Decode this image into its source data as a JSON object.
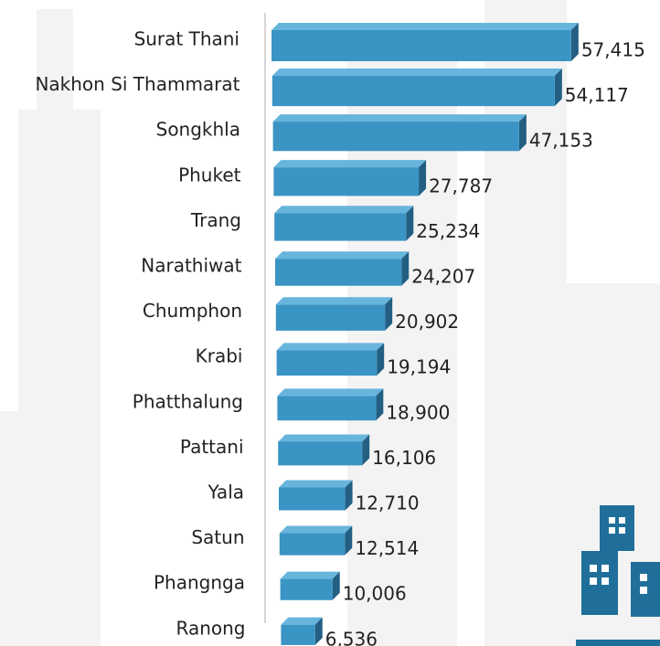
{
  "chart_data": {
    "type": "bar",
    "categories": [
      "Surat Thani",
      "Nakhon Si Thammarat",
      "Songkhla",
      "Phuket",
      "Trang",
      "Narathiwat",
      "Chumphon",
      "Krabi",
      "Phatthalung",
      "Pattani",
      "Yala",
      "Satun",
      "Phangnga",
      "Ranong"
    ],
    "values": [
      57415,
      54117,
      47153,
      27787,
      25234,
      24207,
      20902,
      19194,
      18900,
      16106,
      12710,
      12514,
      10006,
      6536
    ],
    "value_labels": [
      "57,415",
      "54,117",
      "47,153",
      "27,787",
      "25,234",
      "24,207",
      "20,902",
      "19,194",
      "18,900",
      "16,106",
      "12,710",
      "12,514",
      "10,006",
      "6,536"
    ],
    "color": "#3a94c4"
  }
}
